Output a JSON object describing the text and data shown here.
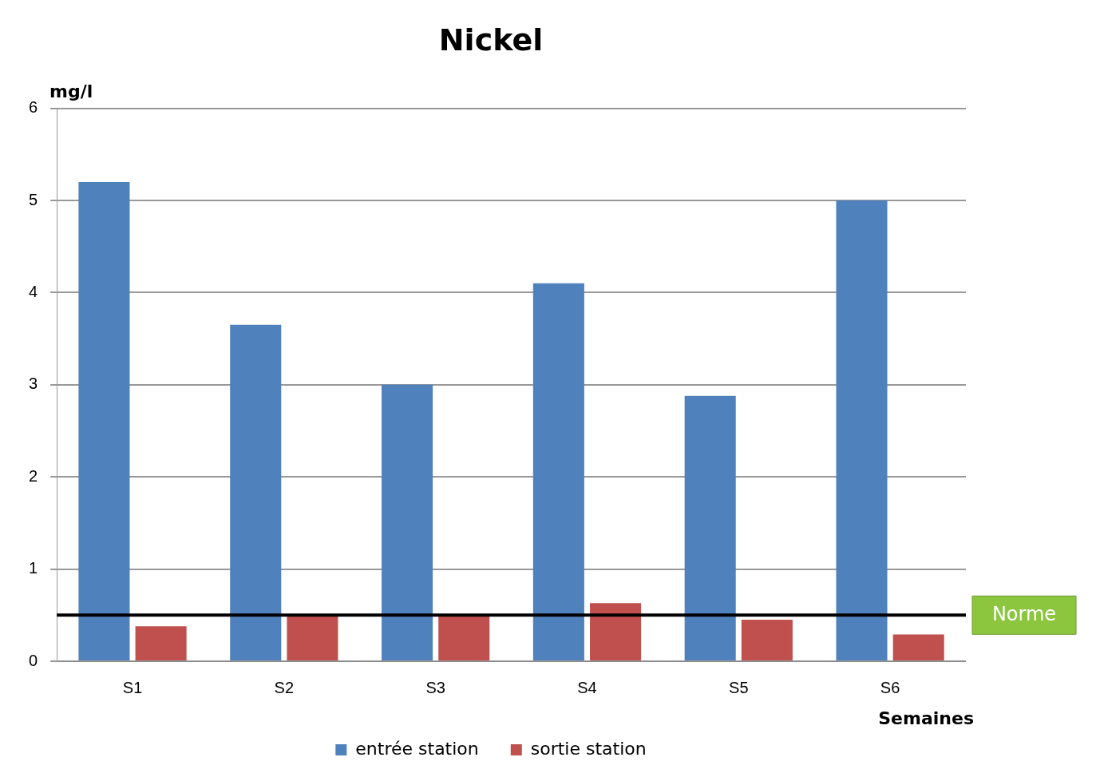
{
  "chart_data": {
    "type": "bar",
    "title": "Nickel",
    "xlabel": "Semaines",
    "ylabel": "mg/l",
    "categories": [
      "S1",
      "S2",
      "S3",
      "S4",
      "S5",
      "S6"
    ],
    "series": [
      {
        "name": "entrée station",
        "color": "#4f81bd",
        "values": [
          5.2,
          3.65,
          3.0,
          4.1,
          2.88,
          5.0
        ]
      },
      {
        "name": "sortie station",
        "color": "#c0504d",
        "values": [
          0.38,
          0.5,
          0.49,
          0.63,
          0.45,
          0.29
        ]
      }
    ],
    "ylim": [
      0,
      6
    ],
    "yticks": [
      0,
      1,
      2,
      3,
      4,
      5,
      6
    ],
    "grid": "y",
    "legend": "bottom",
    "ref_lines": [
      {
        "axis": "y",
        "value": 0.5,
        "label": "Norme",
        "color": "#000000"
      }
    ]
  }
}
